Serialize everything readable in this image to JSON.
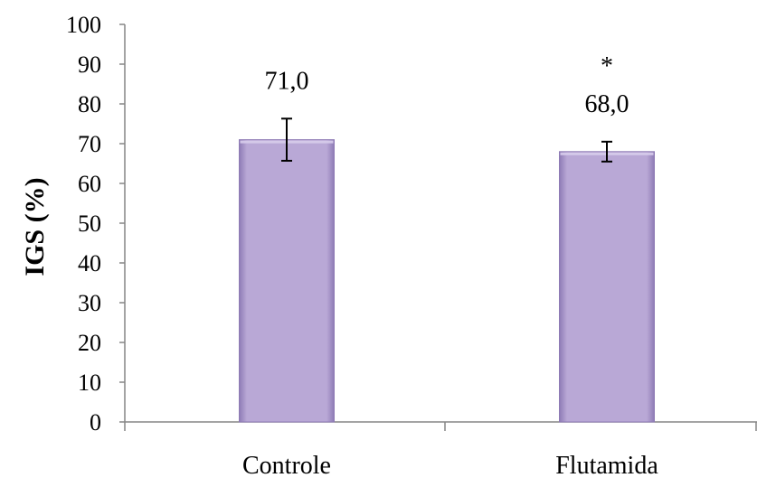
{
  "chart_data": {
    "type": "bar",
    "categories": [
      "Controle",
      "Flutamida"
    ],
    "series": [
      {
        "values": [
          71.0,
          68.0
        ],
        "errors": [
          5.3,
          2.5
        ],
        "data_labels": [
          "71,0",
          "68,0"
        ],
        "significance": [
          "",
          "*"
        ]
      }
    ],
    "xlabel": "",
    "ylabel": "IGS (%)",
    "ylim": [
      0,
      100
    ],
    "yticks": [
      0,
      10,
      20,
      30,
      40,
      50,
      60,
      70,
      80,
      90,
      100
    ],
    "ytick_labels": [
      "0",
      "10",
      "20",
      "30",
      "40",
      "50",
      "60",
      "70",
      "80",
      "90",
      "100"
    ],
    "grid": false,
    "legend": "none",
    "colors": {
      "bar_fill": "#b9a8d6",
      "bar_edge_dark": "#8e7bb5",
      "bar_edge_light": "#d7cceb",
      "axis": "#868686",
      "text": "#000000"
    }
  }
}
